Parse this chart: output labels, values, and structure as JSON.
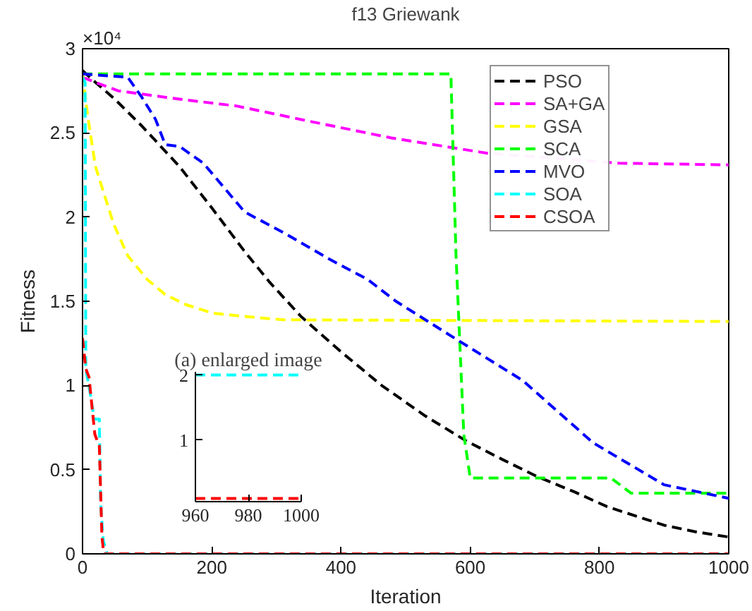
{
  "chart_data": [
    {
      "type": "line",
      "title": "f13 Griewank",
      "xlabel": "Iteration",
      "ylabel": "Fitness",
      "annotations": [
        "×10⁴"
      ],
      "xlim": [
        0,
        1000
      ],
      "ylim": [
        0,
        3
      ],
      "xticks": [
        0,
        200,
        400,
        600,
        800,
        1000
      ],
      "yticks": [
        0,
        0.5,
        1,
        1.5,
        2,
        2.5,
        3
      ],
      "grid": false,
      "legend": "top right",
      "line_style": "dashed",
      "series": [
        {
          "name": "PSO",
          "color": "#000000",
          "x": [
            0,
            20,
            50,
            92,
            150,
            201,
            250,
            288,
            338,
            400,
            463,
            530,
            594,
            650,
            703,
            760,
            812,
            860,
            900,
            950,
            1000
          ],
          "values": [
            2.87,
            2.8,
            2.7,
            2.54,
            2.3,
            2.05,
            1.8,
            1.62,
            1.41,
            1.2,
            1.0,
            0.82,
            0.67,
            0.56,
            0.46,
            0.37,
            0.28,
            0.22,
            0.17,
            0.13,
            0.1
          ]
        },
        {
          "name": "SA+GA",
          "color": "#ff00ff",
          "x": [
            0,
            20,
            55,
            150,
            238,
            350,
            478,
            560,
            625,
            830,
            1000
          ],
          "values": [
            2.83,
            2.8,
            2.75,
            2.7,
            2.66,
            2.57,
            2.47,
            2.42,
            2.38,
            2.32,
            2.31
          ]
        },
        {
          "name": "GSA",
          "color": "#ffff00",
          "x": [
            0,
            8,
            20,
            48,
            70,
            100,
            128,
            160,
            201,
            250,
            310,
            1000
          ],
          "values": [
            2.85,
            2.6,
            2.3,
            1.96,
            1.77,
            1.63,
            1.54,
            1.48,
            1.43,
            1.41,
            1.39,
            1.38
          ]
        },
        {
          "name": "SCA",
          "color": "#00ff00",
          "x": [
            0,
            570,
            578,
            590,
            600,
            818,
            849,
            1000
          ],
          "values": [
            2.85,
            2.85,
            1.77,
            0.71,
            0.45,
            0.45,
            0.36,
            0.36
          ]
        },
        {
          "name": "MVO",
          "color": "#0000ff",
          "x": [
            0,
            70,
            92,
            113,
            128,
            150,
            187,
            251,
            310,
            382,
            441,
            485,
            572,
            681,
            790,
            900,
            1000
          ],
          "values": [
            2.85,
            2.83,
            2.71,
            2.58,
            2.43,
            2.42,
            2.32,
            2.03,
            1.91,
            1.75,
            1.63,
            1.5,
            1.29,
            1.03,
            0.66,
            0.41,
            0.33
          ]
        },
        {
          "name": "SOA",
          "color": "#00ffff",
          "x": [
            0,
            4,
            5,
            12,
            18,
            26,
            28,
            32,
            38,
            1000
          ],
          "values": [
            2.83,
            2.8,
            1.1,
            0.95,
            0.8,
            0.8,
            0.3,
            0.08,
            0,
            0
          ]
        },
        {
          "name": "CSOA",
          "color": "#ff0000",
          "x": [
            0,
            5,
            10,
            19,
            26,
            30,
            33,
            1000
          ],
          "values": [
            1.28,
            1.1,
            1.05,
            0.71,
            0.64,
            0.1,
            0,
            0
          ]
        }
      ]
    },
    {
      "type": "line",
      "title": "(a) enlarged image",
      "xlim": [
        960,
        1000
      ],
      "ylim": [
        0.05,
        2.05
      ],
      "xticks": [
        960,
        980,
        1000
      ],
      "yticks": [
        1,
        2
      ],
      "grid": false,
      "line_style": "dashed",
      "series": [
        {
          "color": "#00ffff",
          "x": [
            960,
            1000
          ],
          "values": [
            2,
            2
          ]
        },
        {
          "color": "#ff0000",
          "x": [
            960,
            1000
          ],
          "values": [
            0.1,
            0.1
          ]
        }
      ]
    }
  ]
}
